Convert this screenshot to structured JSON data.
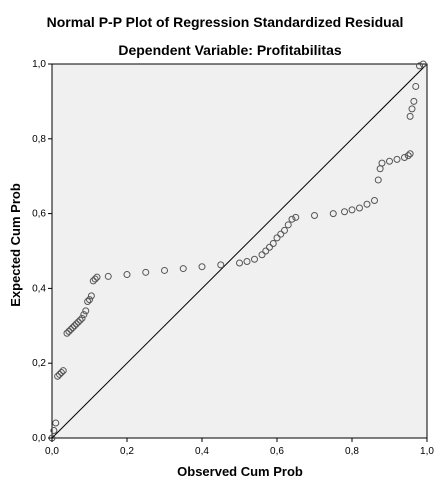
{
  "chart_data": {
    "type": "scatter",
    "title": "Normal P-P Plot of Regression Standardized Residual",
    "subtitle": "Dependent Variable: Profitabilitas",
    "xlabel": "Observed Cum Prob",
    "ylabel": "Expected Cum Prob",
    "xlim": [
      0,
      1
    ],
    "ylim": [
      0,
      1
    ],
    "x_ticks": [
      "0,0",
      "0,2",
      "0,4",
      "0,6",
      "0,8",
      "1,0"
    ],
    "y_ticks": [
      "0,0",
      "0,2",
      "0,4",
      "0,6",
      "0,8",
      "1,0"
    ],
    "reference_line": {
      "from": [
        0,
        0
      ],
      "to": [
        1,
        1
      ]
    },
    "grid": false,
    "colors": {
      "plot_background": "#f0f0f0",
      "marker": "#555555",
      "line": "#000000"
    },
    "series": [
      {
        "points": [
          [
            0.0,
            0.0
          ],
          [
            0.005,
            0.02
          ],
          [
            0.01,
            0.04
          ],
          [
            0.015,
            0.165
          ],
          [
            0.02,
            0.17
          ],
          [
            0.025,
            0.175
          ],
          [
            0.03,
            0.18
          ],
          [
            0.04,
            0.28
          ],
          [
            0.045,
            0.285
          ],
          [
            0.05,
            0.29
          ],
          [
            0.055,
            0.295
          ],
          [
            0.06,
            0.3
          ],
          [
            0.065,
            0.305
          ],
          [
            0.07,
            0.31
          ],
          [
            0.075,
            0.315
          ],
          [
            0.08,
            0.32
          ],
          [
            0.085,
            0.33
          ],
          [
            0.09,
            0.34
          ],
          [
            0.095,
            0.365
          ],
          [
            0.1,
            0.37
          ],
          [
            0.105,
            0.38
          ],
          [
            0.11,
            0.42
          ],
          [
            0.115,
            0.425
          ],
          [
            0.12,
            0.43
          ],
          [
            0.15,
            0.432
          ],
          [
            0.2,
            0.437
          ],
          [
            0.25,
            0.443
          ],
          [
            0.3,
            0.448
          ],
          [
            0.35,
            0.453
          ],
          [
            0.4,
            0.458
          ],
          [
            0.45,
            0.463
          ],
          [
            0.5,
            0.468
          ],
          [
            0.52,
            0.472
          ],
          [
            0.54,
            0.478
          ],
          [
            0.56,
            0.49
          ],
          [
            0.57,
            0.5
          ],
          [
            0.58,
            0.51
          ],
          [
            0.59,
            0.52
          ],
          [
            0.6,
            0.535
          ],
          [
            0.61,
            0.545
          ],
          [
            0.62,
            0.555
          ],
          [
            0.63,
            0.57
          ],
          [
            0.64,
            0.585
          ],
          [
            0.65,
            0.59
          ],
          [
            0.7,
            0.595
          ],
          [
            0.75,
            0.6
          ],
          [
            0.78,
            0.605
          ],
          [
            0.8,
            0.61
          ],
          [
            0.82,
            0.615
          ],
          [
            0.84,
            0.625
          ],
          [
            0.86,
            0.635
          ],
          [
            0.87,
            0.69
          ],
          [
            0.875,
            0.72
          ],
          [
            0.88,
            0.735
          ],
          [
            0.9,
            0.74
          ],
          [
            0.92,
            0.745
          ],
          [
            0.94,
            0.75
          ],
          [
            0.95,
            0.755
          ],
          [
            0.955,
            0.76
          ],
          [
            0.955,
            0.86
          ],
          [
            0.96,
            0.88
          ],
          [
            0.965,
            0.9
          ],
          [
            0.97,
            0.94
          ],
          [
            0.98,
            0.995
          ],
          [
            0.99,
            1.0
          ]
        ]
      }
    ]
  }
}
